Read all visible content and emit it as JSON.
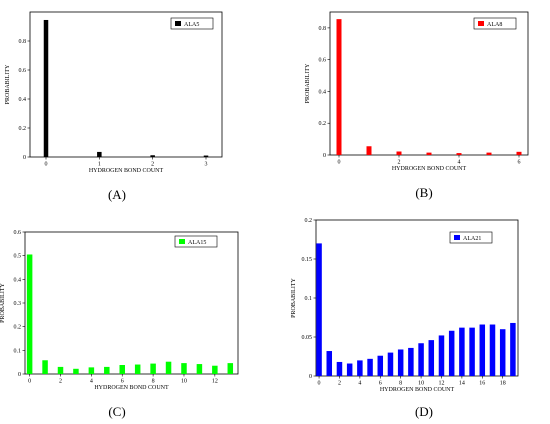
{
  "chart_data": [
    {
      "type": "bar",
      "panel_label": "(A)",
      "legend": "ALA5",
      "color": "#000000",
      "xlabel": "HYDROGEN BOND COUNT",
      "ylabel": "PROBABILITY",
      "xlim": [
        -0.3,
        3.3
      ],
      "ylim": [
        0,
        1.0
      ],
      "xticks": [
        0,
        1,
        2,
        3
      ],
      "yticks": [
        0,
        0.2,
        0.4,
        0.6,
        0.8
      ],
      "x": [
        0,
        1,
        2,
        3
      ],
      "values": [
        0.945,
        0.035,
        0.012,
        0.01
      ]
    },
    {
      "type": "bar",
      "panel_label": "(B)",
      "legend": "ALA8",
      "color": "#ff0000",
      "xlabel": "HYDROGEN BOND COUNT",
      "ylabel": "PROBABILITY",
      "xlim": [
        -0.3,
        6.3
      ],
      "ylim": [
        0,
        0.9
      ],
      "xticks": [
        0,
        2,
        4,
        6
      ],
      "yticks": [
        0,
        0.2,
        0.4,
        0.6,
        0.8
      ],
      "x": [
        0,
        1,
        2,
        3,
        4,
        5,
        6
      ],
      "values": [
        0.855,
        0.055,
        0.022,
        0.015,
        0.012,
        0.015,
        0.02
      ]
    },
    {
      "type": "bar",
      "panel_label": "(C)",
      "legend": "ALA15",
      "color": "#00ff00",
      "xlabel": "HYDROGEN BOND COUNT",
      "ylabel": "PROBABILITY",
      "xlim": [
        -0.3,
        13.5
      ],
      "ylim": [
        0,
        0.6
      ],
      "xticks": [
        0,
        2,
        4,
        6,
        8,
        10,
        12
      ],
      "yticks": [
        0,
        0.1,
        0.2,
        0.3,
        0.4,
        0.5,
        0.6
      ],
      "x": [
        0,
        1,
        2,
        3,
        4,
        5,
        6,
        7,
        8,
        9,
        10,
        11,
        12,
        13
      ],
      "values": [
        0.505,
        0.058,
        0.03,
        0.022,
        0.028,
        0.03,
        0.038,
        0.04,
        0.044,
        0.052,
        0.046,
        0.042,
        0.035,
        0.046
      ]
    },
    {
      "type": "bar",
      "panel_label": "(D)",
      "legend": "ALA21",
      "color": "#0000ff",
      "xlabel": "HYDROGEN BOND COUNT",
      "ylabel": "PROBABILITY",
      "xlim": [
        -0.3,
        19.5
      ],
      "ylim": [
        0,
        0.2
      ],
      "xticks": [
        0,
        2,
        4,
        6,
        8,
        10,
        12,
        14,
        16,
        18
      ],
      "yticks": [
        0,
        0.05,
        0.1,
        0.15,
        0.2
      ],
      "x": [
        0,
        1,
        2,
        3,
        4,
        5,
        6,
        7,
        8,
        9,
        10,
        11,
        12,
        13,
        14,
        15,
        16,
        17,
        18,
        19
      ],
      "values": [
        0.17,
        0.032,
        0.018,
        0.016,
        0.02,
        0.022,
        0.026,
        0.03,
        0.034,
        0.036,
        0.042,
        0.046,
        0.052,
        0.058,
        0.062,
        0.062,
        0.066,
        0.066,
        0.06,
        0.068
      ]
    }
  ]
}
